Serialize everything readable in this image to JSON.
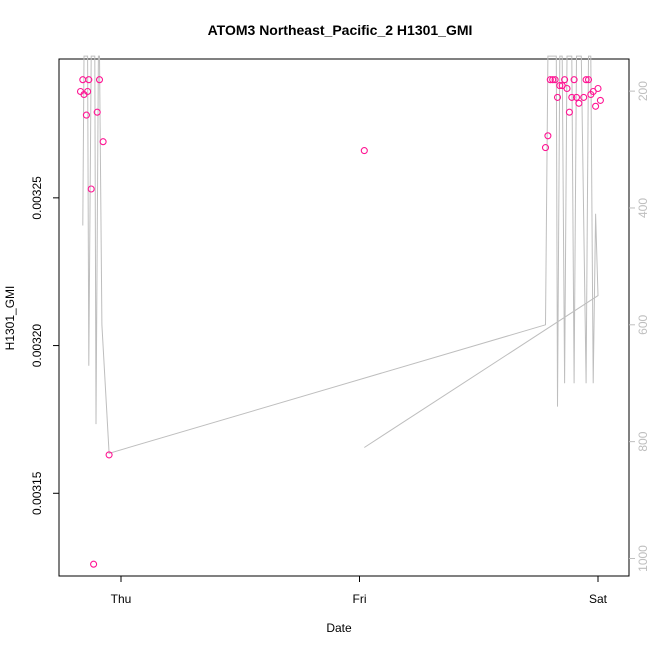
{
  "chart_data": {
    "type": "scatter",
    "title": "ATOM3 Northeast_Pacific_2 H1301_GMI",
    "xlabel": "Date",
    "ylabel": "H1301_GMI",
    "x_ticks": [
      {
        "label": "Thu",
        "t": 0.0
      },
      {
        "label": "Fri",
        "t": 1.0
      },
      {
        "label": "Sat",
        "t": 2.0
      }
    ],
    "x_range_days": [
      -0.26,
      2.13
    ],
    "y_ticks": [
      "0.00315",
      "0.00320",
      "0.00325"
    ],
    "y_tick_values": [
      0.00315,
      0.0032,
      0.00325
    ],
    "ylim": [
      0.003122,
      0.003297
    ],
    "y2_label": "",
    "y2_ticks": [
      "200",
      "400",
      "600",
      "800",
      "1000"
    ],
    "y2_tick_values": [
      200,
      400,
      600,
      800,
      1000
    ],
    "y2_range": [
      1030,
      145
    ],
    "point_color": "#ff1493",
    "line_color": "#bebebe",
    "grid": false,
    "legend": "none",
    "points": [
      {
        "t": -0.17,
        "y": 0.003286
      },
      {
        "t": -0.16,
        "y": 0.00329
      },
      {
        "t": -0.155,
        "y": 0.003285
      },
      {
        "t": -0.145,
        "y": 0.003278
      },
      {
        "t": -0.14,
        "y": 0.003286
      },
      {
        "t": -0.135,
        "y": 0.00329
      },
      {
        "t": -0.125,
        "y": 0.003253
      },
      {
        "t": -0.115,
        "y": 0.003126
      },
      {
        "t": -0.1,
        "y": 0.003279
      },
      {
        "t": -0.09,
        "y": 0.00329
      },
      {
        "t": -0.075,
        "y": 0.003269
      },
      {
        "t": -0.05,
        "y": 0.003163
      },
      {
        "t": 1.02,
        "y": 0.003266
      },
      {
        "t": 1.78,
        "y": 0.003267
      },
      {
        "t": 1.79,
        "y": 0.003271
      },
      {
        "t": 1.8,
        "y": 0.00329
      },
      {
        "t": 1.81,
        "y": 0.00329
      },
      {
        "t": 1.82,
        "y": 0.00329
      },
      {
        "t": 1.83,
        "y": 0.003284
      },
      {
        "t": 1.84,
        "y": 0.003288
      },
      {
        "t": 1.85,
        "y": 0.003288
      },
      {
        "t": 1.86,
        "y": 0.00329
      },
      {
        "t": 1.87,
        "y": 0.003287
      },
      {
        "t": 1.88,
        "y": 0.003279
      },
      {
        "t": 1.89,
        "y": 0.003284
      },
      {
        "t": 1.9,
        "y": 0.00329
      },
      {
        "t": 1.91,
        "y": 0.003284
      },
      {
        "t": 1.92,
        "y": 0.003282
      },
      {
        "t": 1.94,
        "y": 0.003284
      },
      {
        "t": 1.95,
        "y": 0.00329
      },
      {
        "t": 1.96,
        "y": 0.00329
      },
      {
        "t": 1.97,
        "y": 0.003285
      },
      {
        "t": 1.98,
        "y": 0.003286
      },
      {
        "t": 1.99,
        "y": 0.003281
      },
      {
        "t": 2.0,
        "y": 0.003287
      },
      {
        "t": 2.01,
        "y": 0.003283
      }
    ],
    "pressure_series": [
      {
        "t": -0.16,
        "p": 430
      },
      {
        "t": -0.155,
        "p": 140
      },
      {
        "t": -0.14,
        "p": 140
      },
      {
        "t": -0.135,
        "p": 670
      },
      {
        "t": -0.125,
        "p": 140
      },
      {
        "t": -0.11,
        "p": 140
      },
      {
        "t": -0.105,
        "p": 770
      },
      {
        "t": -0.095,
        "p": 140
      },
      {
        "t": -0.09,
        "p": 140
      },
      {
        "t": -0.08,
        "p": 600
      },
      {
        "t": -0.05,
        "p": 820
      },
      {
        "t": 1.78,
        "p": 600
      },
      {
        "t": 1.79,
        "p": 140
      },
      {
        "t": 1.8,
        "p": 140
      },
      {
        "t": 1.81,
        "p": 140
      },
      {
        "t": 1.825,
        "p": 140
      },
      {
        "t": 1.83,
        "p": 740
      },
      {
        "t": 1.84,
        "p": 140
      },
      {
        "t": 1.85,
        "p": 140
      },
      {
        "t": 1.86,
        "p": 700
      },
      {
        "t": 1.87,
        "p": 140
      },
      {
        "t": 1.89,
        "p": 140
      },
      {
        "t": 1.9,
        "p": 700
      },
      {
        "t": 1.91,
        "p": 140
      },
      {
        "t": 1.93,
        "p": 140
      },
      {
        "t": 1.95,
        "p": 700
      },
      {
        "t": 1.96,
        "p": 140
      },
      {
        "t": 1.97,
        "p": 140
      },
      {
        "t": 1.98,
        "p": 700
      },
      {
        "t": 1.99,
        "p": 410
      },
      {
        "t": 2.0,
        "p": 550
      },
      {
        "t": 1.02,
        "p": 810
      }
    ]
  }
}
